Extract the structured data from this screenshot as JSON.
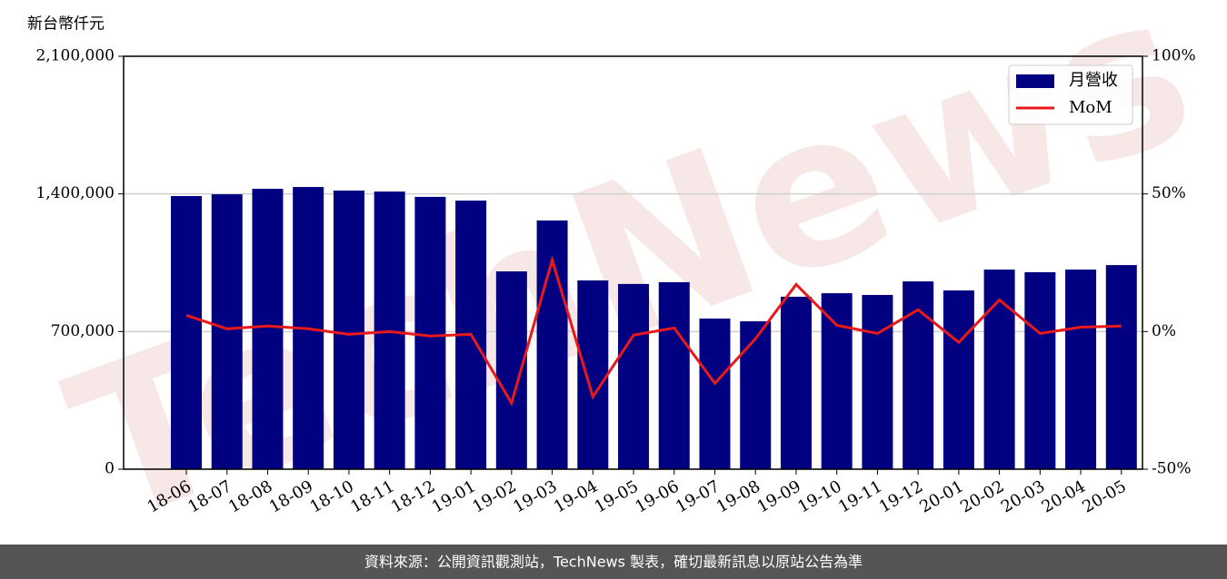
{
  "chart_data": {
    "type": "bar",
    "y_label": "新台幣仟元",
    "source_note": "資料來源：公開資訊觀測站，TechNews 製表，確切最新訊息以原站公告為準",
    "watermark": "TechNews",
    "categories": [
      "18-06",
      "18-07",
      "18-08",
      "18-09",
      "18-10",
      "18-11",
      "18-12",
      "19-01",
      "19-02",
      "19-03",
      "19-04",
      "19-05",
      "19-06",
      "19-07",
      "19-08",
      "19-09",
      "19-10",
      "19-11",
      "19-12",
      "20-01",
      "20-02",
      "20-03",
      "20-04",
      "20-05"
    ],
    "series": [
      {
        "name": "月營收",
        "type": "bar",
        "color": "#000080",
        "values": [
          1389000,
          1398000,
          1426000,
          1435000,
          1417000,
          1412000,
          1385000,
          1366000,
          1006000,
          1265000,
          960000,
          942000,
          951000,
          766000,
          752000,
          877000,
          895000,
          886000,
          955000,
          909000,
          1015000,
          1002000,
          1015000,
          1038000
        ]
      },
      {
        "name": "MoM",
        "type": "line",
        "color": "#e8191b",
        "axis": "y2",
        "values": [
          5.9,
          1.0,
          2.0,
          1.0,
          -1.0,
          0,
          -1.6,
          -1.0,
          -26,
          26,
          -23.7,
          -1.3,
          1.3,
          -18.8,
          -2.6,
          17.1,
          2.3,
          -0.7,
          7.9,
          -3.9,
          11.5,
          -0.7,
          1.6,
          2.0
        ]
      }
    ],
    "ylim": [
      0,
      2100000
    ],
    "yticks": [
      0,
      {
        "value": 700000,
        "label": "700,000"
      },
      {
        "value": 1400000,
        "label": "1,400,000"
      },
      {
        "value": 2100000,
        "label": "2,100,000"
      }
    ],
    "y2lim": [
      -50,
      100
    ],
    "y2ticks": [
      {
        "value": -50,
        "label": "-50%"
      },
      {
        "value": 0,
        "label": "0%"
      },
      {
        "value": 50,
        "label": "50%"
      },
      {
        "value": 100,
        "label": "100%"
      }
    ],
    "grid": true,
    "legend": "upper right"
  }
}
